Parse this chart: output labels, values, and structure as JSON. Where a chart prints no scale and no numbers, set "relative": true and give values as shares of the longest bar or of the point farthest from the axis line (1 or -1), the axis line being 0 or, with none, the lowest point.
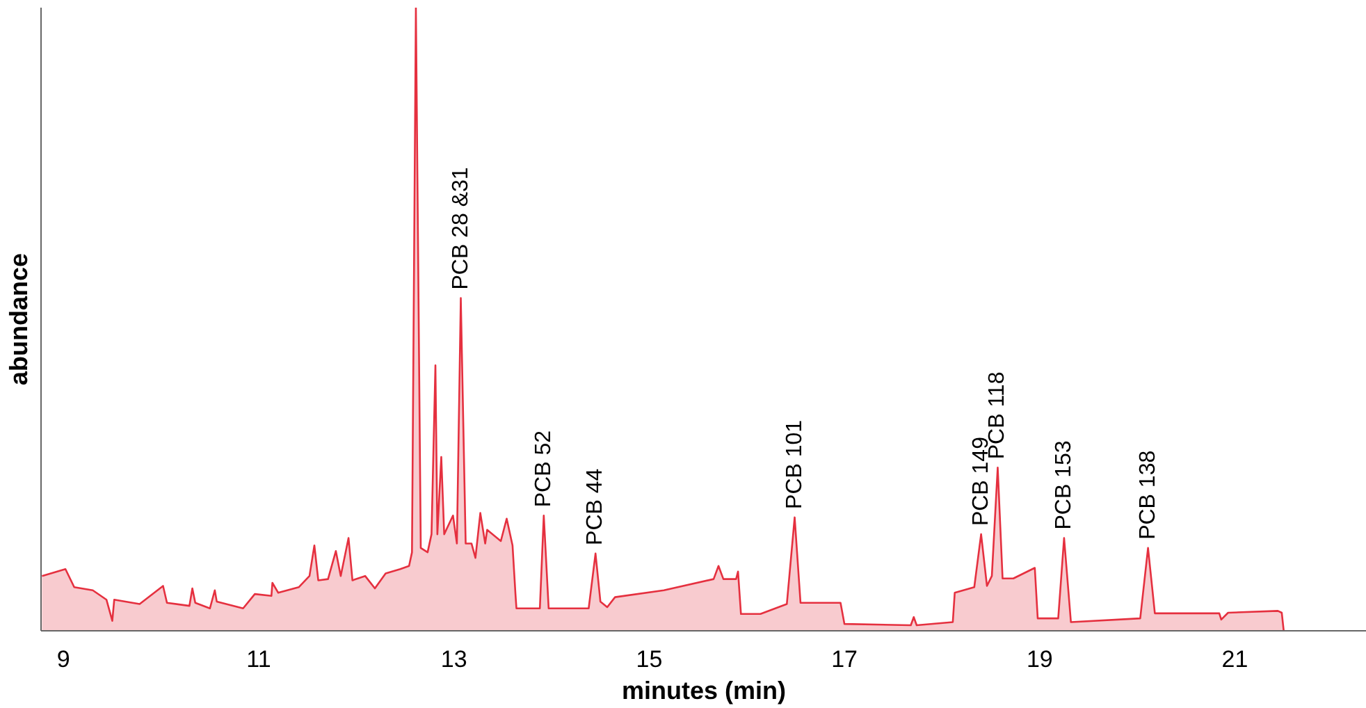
{
  "chart_data": {
    "type": "area",
    "relative": true,
    "xlabel": "minutes (min)",
    "ylabel": "abundance",
    "xlim": [
      8.77,
      22.35
    ],
    "xticks": [
      9,
      11,
      13,
      15,
      17,
      19,
      21
    ],
    "grid": false,
    "tick_labels": "x",
    "series": [
      {
        "color": "#e5303f",
        "x": [
          8.78,
          9.02,
          9.11,
          9.3,
          9.44,
          9.5,
          9.52,
          9.78,
          10.02,
          10.06,
          10.29,
          10.32,
          10.35,
          10.5,
          10.55,
          10.57,
          10.84,
          10.96,
          11.13,
          11.14,
          11.2,
          11.41,
          11.52,
          11.57,
          11.61,
          11.71,
          11.79,
          11.84,
          11.92,
          11.96,
          12.09,
          12.19,
          12.3,
          12.45,
          12.54,
          12.57,
          12.61,
          12.66,
          12.73,
          12.77,
          12.81,
          12.83,
          12.87,
          12.9,
          12.99,
          13.03,
          13.07,
          13.12,
          13.18,
          13.22,
          13.27,
          13.32,
          13.34,
          13.48,
          13.54,
          13.6,
          13.63,
          13.64,
          13.88,
          13.92,
          13.97,
          14.38,
          14.45,
          14.5,
          14.57,
          14.65,
          15.15,
          15.66,
          15.71,
          15.76,
          15.89,
          15.91,
          15.94,
          16.14,
          16.41,
          16.49,
          16.55,
          16.96,
          17.0,
          17.68,
          17.71,
          17.74,
          18.11,
          18.13,
          18.33,
          18.4,
          18.46,
          18.51,
          18.57,
          18.62,
          18.73,
          18.95,
          18.98,
          19.19,
          19.25,
          19.32,
          20.03,
          20.11,
          20.18,
          20.84,
          20.86,
          20.93,
          21.44,
          21.48,
          21.5
        ],
        "values": [
          0.088,
          0.099,
          0.07,
          0.065,
          0.05,
          0.016,
          0.05,
          0.043,
          0.072,
          0.045,
          0.04,
          0.068,
          0.045,
          0.036,
          0.065,
          0.047,
          0.036,
          0.059,
          0.056,
          0.077,
          0.061,
          0.07,
          0.088,
          0.137,
          0.081,
          0.083,
          0.128,
          0.088,
          0.149,
          0.081,
          0.088,
          0.068,
          0.092,
          0.099,
          0.104,
          0.126,
          1,
          0.133,
          0.126,
          0.155,
          0.426,
          0.155,
          0.279,
          0.155,
          0.185,
          0.14,
          0.534,
          0.14,
          0.14,
          0.117,
          0.189,
          0.14,
          0.162,
          0.144,
          0.18,
          0.137,
          0.059,
          0.036,
          0.036,
          0.185,
          0.036,
          0.036,
          0.124,
          0.047,
          0.038,
          0.054,
          0.065,
          0.083,
          0.104,
          0.083,
          0.083,
          0.095,
          0.027,
          0.027,
          0.043,
          0.182,
          0.045,
          0.045,
          0.011,
          0.009,
          0.022,
          0.009,
          0.014,
          0.061,
          0.07,
          0.155,
          0.072,
          0.088,
          0.262,
          0.084,
          0.084,
          0.101,
          0.02,
          0.02,
          0.149,
          0.014,
          0.02,
          0.133,
          0.028,
          0.028,
          0.018,
          0.029,
          0.032,
          0.029,
          0
        ]
      }
    ],
    "annotations": [
      {
        "text": "PCB 28 &31",
        "x": 13.07,
        "y": 0.534
      },
      {
        "text": "PCB 52",
        "x": 13.92,
        "y": 0.185
      },
      {
        "text": "PCB 44",
        "x": 14.45,
        "y": 0.124
      },
      {
        "text": "PCB 101",
        "x": 16.49,
        "y": 0.182
      },
      {
        "text": "PCB 149",
        "x": 18.4,
        "y": 0.155
      },
      {
        "text": "PCB 118",
        "x": 18.57,
        "y": 0.262
      },
      {
        "text": "PCB 153",
        "x": 19.25,
        "y": 0.149
      },
      {
        "text": "PCB 138",
        "x": 20.11,
        "y": 0.133
      }
    ]
  }
}
